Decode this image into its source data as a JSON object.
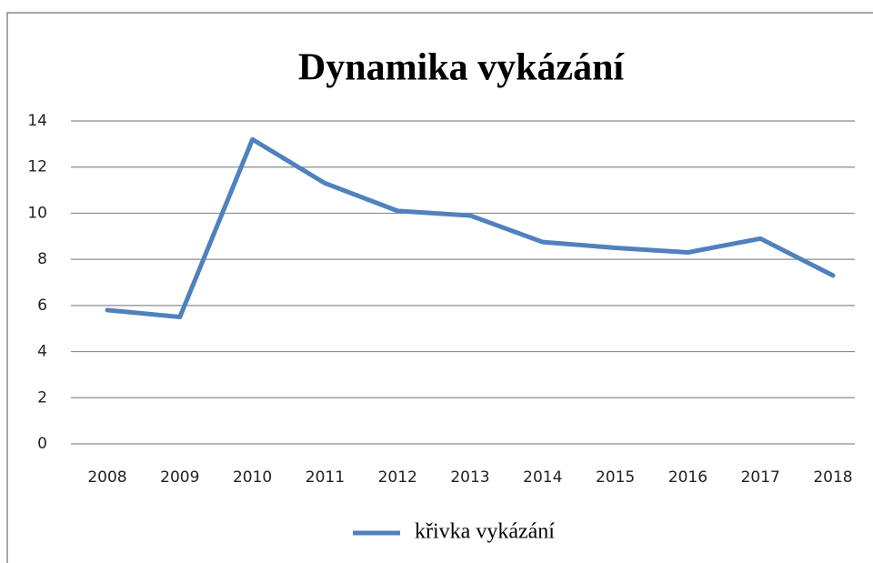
{
  "chart_data": {
    "type": "line",
    "title": "Dynamika vykázání",
    "categories": [
      "2008",
      "2009",
      "2010",
      "2011",
      "2012",
      "2013",
      "2014",
      "2015",
      "2016",
      "2017",
      "2018"
    ],
    "series": [
      {
        "name": "křivka vykázání",
        "color": "#4f81bd",
        "values": [
          5.8,
          5.5,
          13.2,
          11.3,
          10.1,
          9.9,
          8.75,
          8.5,
          8.3,
          8.9,
          7.3
        ]
      }
    ],
    "ylim": [
      0,
      14
    ],
    "yticks": [
      0,
      2,
      4,
      6,
      8,
      10,
      12,
      14
    ],
    "grid": true,
    "legend": "bottom"
  }
}
